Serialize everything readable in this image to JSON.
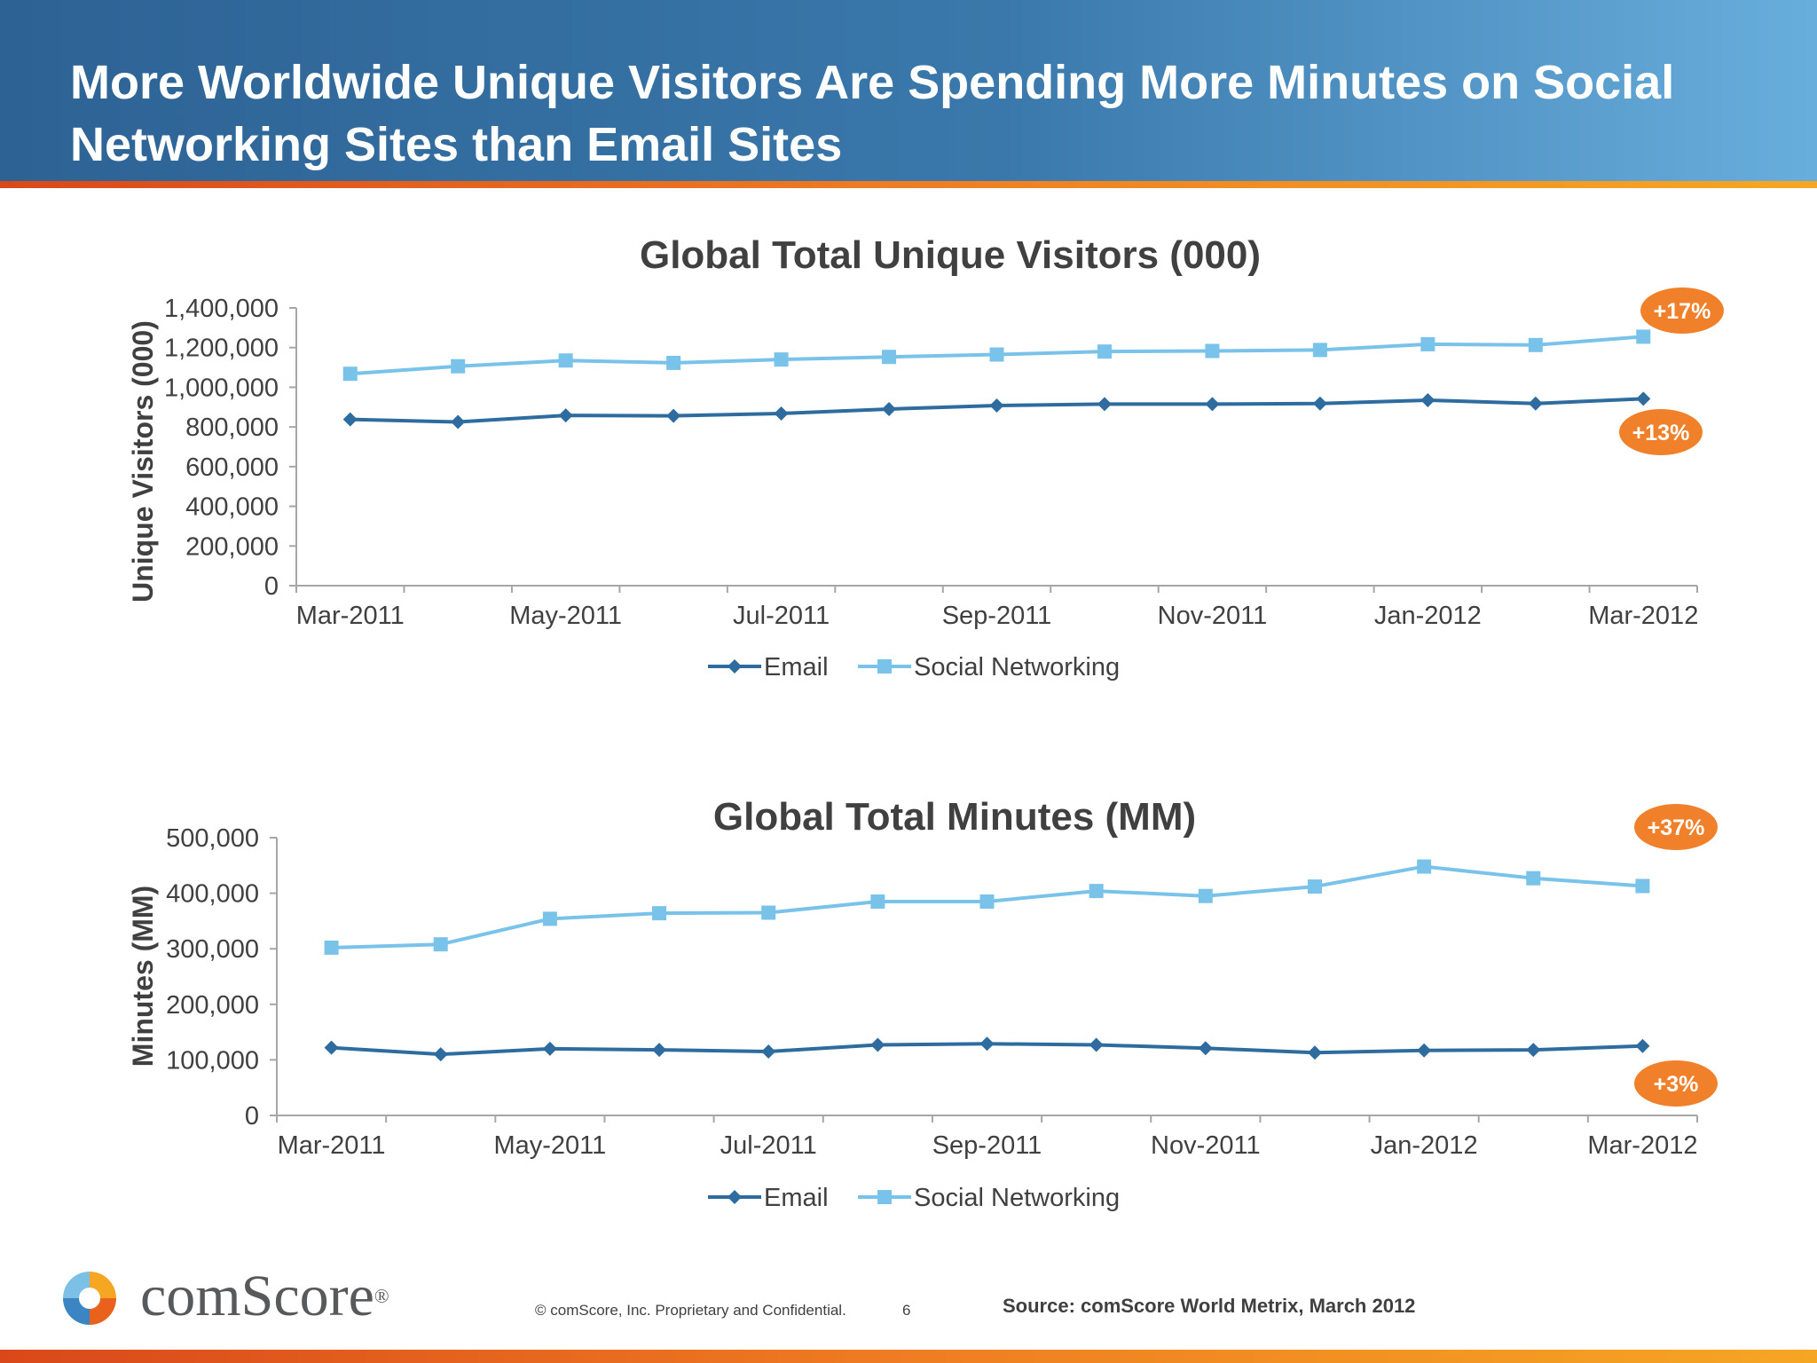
{
  "slide": {
    "title": "More Worldwide Unique Visitors Are Spending More Minutes on Social Networking Sites than Email Sites"
  },
  "colors": {
    "email": "#2e6b9e",
    "social": "#79c2ea",
    "badge": "#f0812a",
    "axis": "#a6a6a6",
    "text": "#404040"
  },
  "chart_data": [
    {
      "type": "line",
      "title": "Global Total Unique Visitors (000)",
      "ylabel": "Unique Visitors (000)",
      "xlabel": "",
      "x": [
        "Mar-2011",
        "Apr-2011",
        "May-2011",
        "Jun-2011",
        "Jul-2011",
        "Aug-2011",
        "Sep-2011",
        "Oct-2011",
        "Nov-2011",
        "Dec-2011",
        "Jan-2012",
        "Feb-2012",
        "Mar-2012"
      ],
      "xtick_labels": [
        "Mar-2011",
        "May-2011",
        "Jul-2011",
        "Sep-2011",
        "Nov-2011",
        "Jan-2012",
        "Mar-2012"
      ],
      "ylim": [
        0,
        1400000
      ],
      "yticks": [
        "0",
        "200,000",
        "400,000",
        "600,000",
        "800,000",
        "1,000,000",
        "1,200,000",
        "1,400,000"
      ],
      "series": [
        {
          "name": "Email",
          "marker": "diamond",
          "values": [
            838000,
            825000,
            858000,
            856000,
            868000,
            890000,
            908000,
            915000,
            915000,
            918000,
            935000,
            918000,
            942000
          ]
        },
        {
          "name": "Social Networking",
          "marker": "square",
          "values": [
            1068000,
            1106000,
            1135000,
            1123000,
            1140000,
            1153000,
            1165000,
            1180000,
            1183000,
            1188000,
            1217000,
            1213000,
            1255000
          ]
        }
      ],
      "annotations": [
        {
          "series": "Social Networking",
          "text": "+17%"
        },
        {
          "series": "Email",
          "text": "+13%"
        }
      ],
      "grid": false,
      "legend": "bottom"
    },
    {
      "type": "line",
      "title": "Global Total Minutes (MM)",
      "ylabel": "Minutes (MM)",
      "xlabel": "",
      "x": [
        "Mar-2011",
        "Apr-2011",
        "May-2011",
        "Jun-2011",
        "Jul-2011",
        "Aug-2011",
        "Sep-2011",
        "Oct-2011",
        "Nov-2011",
        "Dec-2011",
        "Jan-2012",
        "Feb-2012",
        "Mar-2012"
      ],
      "xtick_labels": [
        "Mar-2011",
        "May-2011",
        "Jul-2011",
        "Sep-2011",
        "Nov-2011",
        "Jan-2012",
        "Mar-2012"
      ],
      "ylim": [
        0,
        500000
      ],
      "yticks": [
        "0",
        "100,000",
        "200,000",
        "300,000",
        "400,000",
        "500,000"
      ],
      "series": [
        {
          "name": "Email",
          "marker": "diamond",
          "values": [
            122000,
            110000,
            120000,
            118000,
            115000,
            127000,
            129000,
            127000,
            121000,
            113000,
            117000,
            118000,
            125000
          ]
        },
        {
          "name": "Social Networking",
          "marker": "square",
          "values": [
            302000,
            308000,
            354000,
            364000,
            365000,
            385000,
            385000,
            404000,
            395000,
            412000,
            448000,
            427000,
            413000
          ]
        }
      ],
      "annotations": [
        {
          "series": "Social Networking",
          "text": "+37%"
        },
        {
          "series": "Email",
          "text": "+3%"
        }
      ],
      "grid": false,
      "legend": "bottom"
    }
  ],
  "footer": {
    "brand": "comScore",
    "brand_mark": "®",
    "confidential": "© comScore, Inc.  Proprietary and Confidential.",
    "page_number": "6",
    "source": "Source:  comScore World Metrix, March 2012"
  }
}
